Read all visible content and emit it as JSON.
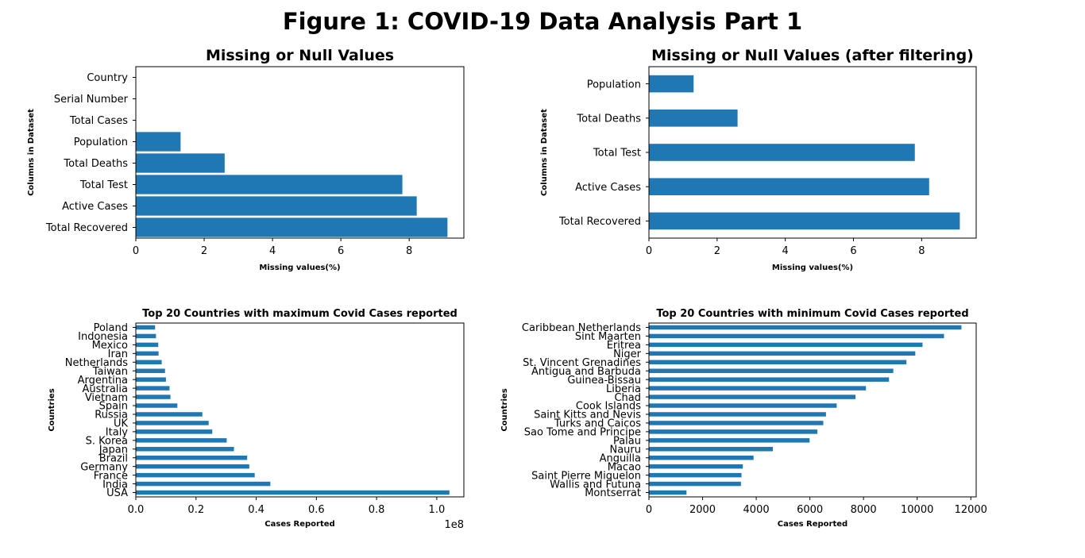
{
  "figure_title": "Figure 1: COVID-19 Data Analysis Part 1",
  "colors": {
    "bar": "#1f77b4",
    "axis": "#000000",
    "background": "#ffffff"
  },
  "chart_data": [
    {
      "type": "bar",
      "orientation": "horizontal",
      "title": "Missing or Null Values",
      "xlabel": "Missing values(%)",
      "ylabel": "Columns in Dataset",
      "xlim": [
        0,
        9.6
      ],
      "xticks": [
        0,
        2,
        4,
        6,
        8
      ],
      "xtick_labels": [
        "0",
        "2",
        "4",
        "6",
        "8"
      ],
      "categories": [
        "Total Recovered",
        "Active Cases",
        "Total Test",
        "Total Deaths",
        "Population",
        "Total Cases",
        "Serial Number",
        "Country"
      ],
      "values": [
        9.12,
        8.22,
        7.8,
        2.6,
        1.31,
        0,
        0,
        0
      ],
      "grid": false
    },
    {
      "type": "bar",
      "orientation": "horizontal",
      "title": "Missing or Null Values (after filtering)",
      "xlabel": "Missing values(%)",
      "ylabel": "Columns in Dataset",
      "xlim": [
        0,
        9.6
      ],
      "xticks": [
        0,
        2,
        4,
        6,
        8
      ],
      "xtick_labels": [
        "0",
        "2",
        "4",
        "6",
        "8"
      ],
      "categories": [
        "Total Recovered",
        "Active Cases",
        "Total Test",
        "Total Deaths",
        "Population"
      ],
      "values": [
        9.12,
        8.22,
        7.8,
        2.6,
        1.31
      ],
      "grid": false
    },
    {
      "type": "bar",
      "orientation": "horizontal",
      "title": "Top 20 Countries with maximum Covid Cases reported",
      "xlabel": "Cases Reported",
      "ylabel": "Countries",
      "xlim": [
        0,
        109000000
      ],
      "xticks": [
        0,
        20000000,
        40000000,
        60000000,
        80000000,
        100000000
      ],
      "xtick_labels": [
        "0.0",
        "0.2",
        "0.4",
        "0.6",
        "0.8",
        "1.0"
      ],
      "offset_text": "1e8",
      "categories": [
        "USA",
        "India",
        "France",
        "Germany",
        "Brazil",
        "Japan",
        "S. Korea",
        "Italy",
        "UK",
        "Russia",
        "Spain",
        "Vietnam",
        "Australia",
        "Argentina",
        "Taiwan",
        "Netherlands",
        "Iran",
        "Mexico",
        "Indonesia",
        "Poland"
      ],
      "values": [
        104200000,
        44700000,
        39500000,
        37700000,
        37000000,
        32600000,
        30200000,
        25400000,
        24200000,
        22100000,
        13800000,
        11500000,
        11200000,
        10000000,
        9700000,
        8600000,
        7560000,
        7450000,
        6700000,
        6400000
      ],
      "grid": false
    },
    {
      "type": "bar",
      "orientation": "horizontal",
      "title": "Top 20 Countries with minimum Covid Cases reported",
      "xlabel": "Cases Reported",
      "ylabel": "Countries",
      "xlim": [
        0,
        12200
      ],
      "xticks": [
        0,
        2000,
        4000,
        6000,
        8000,
        10000,
        12000
      ],
      "xtick_labels": [
        "0",
        "2000",
        "4000",
        "6000",
        "8000",
        "10000",
        "12000"
      ],
      "categories": [
        "Montserrat",
        "Wallis and Futuna",
        "Saint Pierre Miquelon",
        "Macao",
        "Anguilla",
        "Nauru",
        "Palau",
        "Sao Tome and Principe",
        "Turks and Caicos",
        "Saint Kitts and Nevis",
        "Cook Islands",
        "Chad",
        "Liberia",
        "Guinea-Bissau",
        "Antigua and Barbuda",
        "St. Vincent Grenadines",
        "Niger",
        "Eritrea",
        "Sint Maarten",
        "Caribbean Netherlands"
      ],
      "values": [
        1400,
        3430,
        3450,
        3500,
        3900,
        4620,
        5990,
        6280,
        6500,
        6600,
        7000,
        7700,
        8090,
        8950,
        9110,
        9600,
        9930,
        10200,
        11000,
        11650
      ],
      "grid": false
    }
  ]
}
